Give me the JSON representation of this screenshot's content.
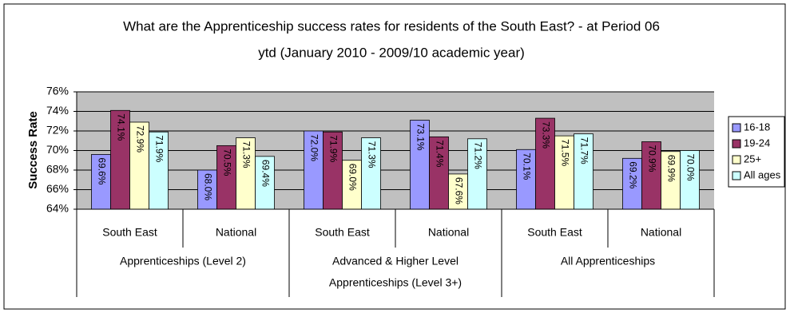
{
  "chart_data": {
    "type": "bar",
    "title": [
      "What are the Apprenticeship success rates for residents of the South East?  - at Period 06",
      "ytd (January 2010 - 2009/10 academic year)"
    ],
    "y_label": "Success Rate",
    "categories": [
      "South East",
      "National",
      "South East",
      "National",
      "South East",
      "National"
    ],
    "groups": [
      [
        "Apprenticeships (Level 2)"
      ],
      [
        "Advanced & Higher Level",
        "Apprenticeships (Level 3+)"
      ],
      [
        "All Apprenticeships"
      ]
    ],
    "series": [
      {
        "name": "16-18",
        "color": "#9999ff",
        "values": [
          69.6,
          68.0,
          72.0,
          73.1,
          70.1,
          69.2
        ],
        "value_labels": [
          "69.6%",
          "68.0%",
          "72.0%",
          "73.1%",
          "70.1%",
          "69.2%"
        ]
      },
      {
        "name": "19-24",
        "color": "#993366",
        "values": [
          74.1,
          70.5,
          71.9,
          71.4,
          73.3,
          70.9
        ],
        "value_labels": [
          "74.1%",
          "70.5%",
          "71.9%",
          "71.4%",
          "73.3%",
          "70.9%"
        ]
      },
      {
        "name": "25+",
        "color": "#ffffcc",
        "values": [
          72.9,
          71.3,
          69.0,
          67.6,
          71.5,
          69.9
        ],
        "value_labels": [
          "72.9%",
          "71.3%",
          "69.0%",
          "67.6%",
          "71.5%",
          "69.9%"
        ]
      },
      {
        "name": "All ages",
        "color": "#ccffff",
        "values": [
          71.9,
          69.4,
          71.3,
          71.2,
          71.7,
          70.0
        ],
        "value_labels": [
          "71.9%",
          "69.4%",
          "71.3%",
          "71.2%",
          "71.7%",
          "70.0%"
        ]
      }
    ],
    "ylim": [
      64,
      76
    ],
    "yticks": [
      {
        "value": 64,
        "label": "64%"
      },
      {
        "value": 66,
        "label": "66%"
      },
      {
        "value": 68,
        "label": "68%"
      },
      {
        "value": 70,
        "label": "70%"
      },
      {
        "value": 72,
        "label": "72%"
      },
      {
        "value": 74,
        "label": "74%"
      },
      {
        "value": 76,
        "label": "76%"
      }
    ],
    "grid": true,
    "plot_background": "#c0c0c0",
    "legend": "right"
  }
}
